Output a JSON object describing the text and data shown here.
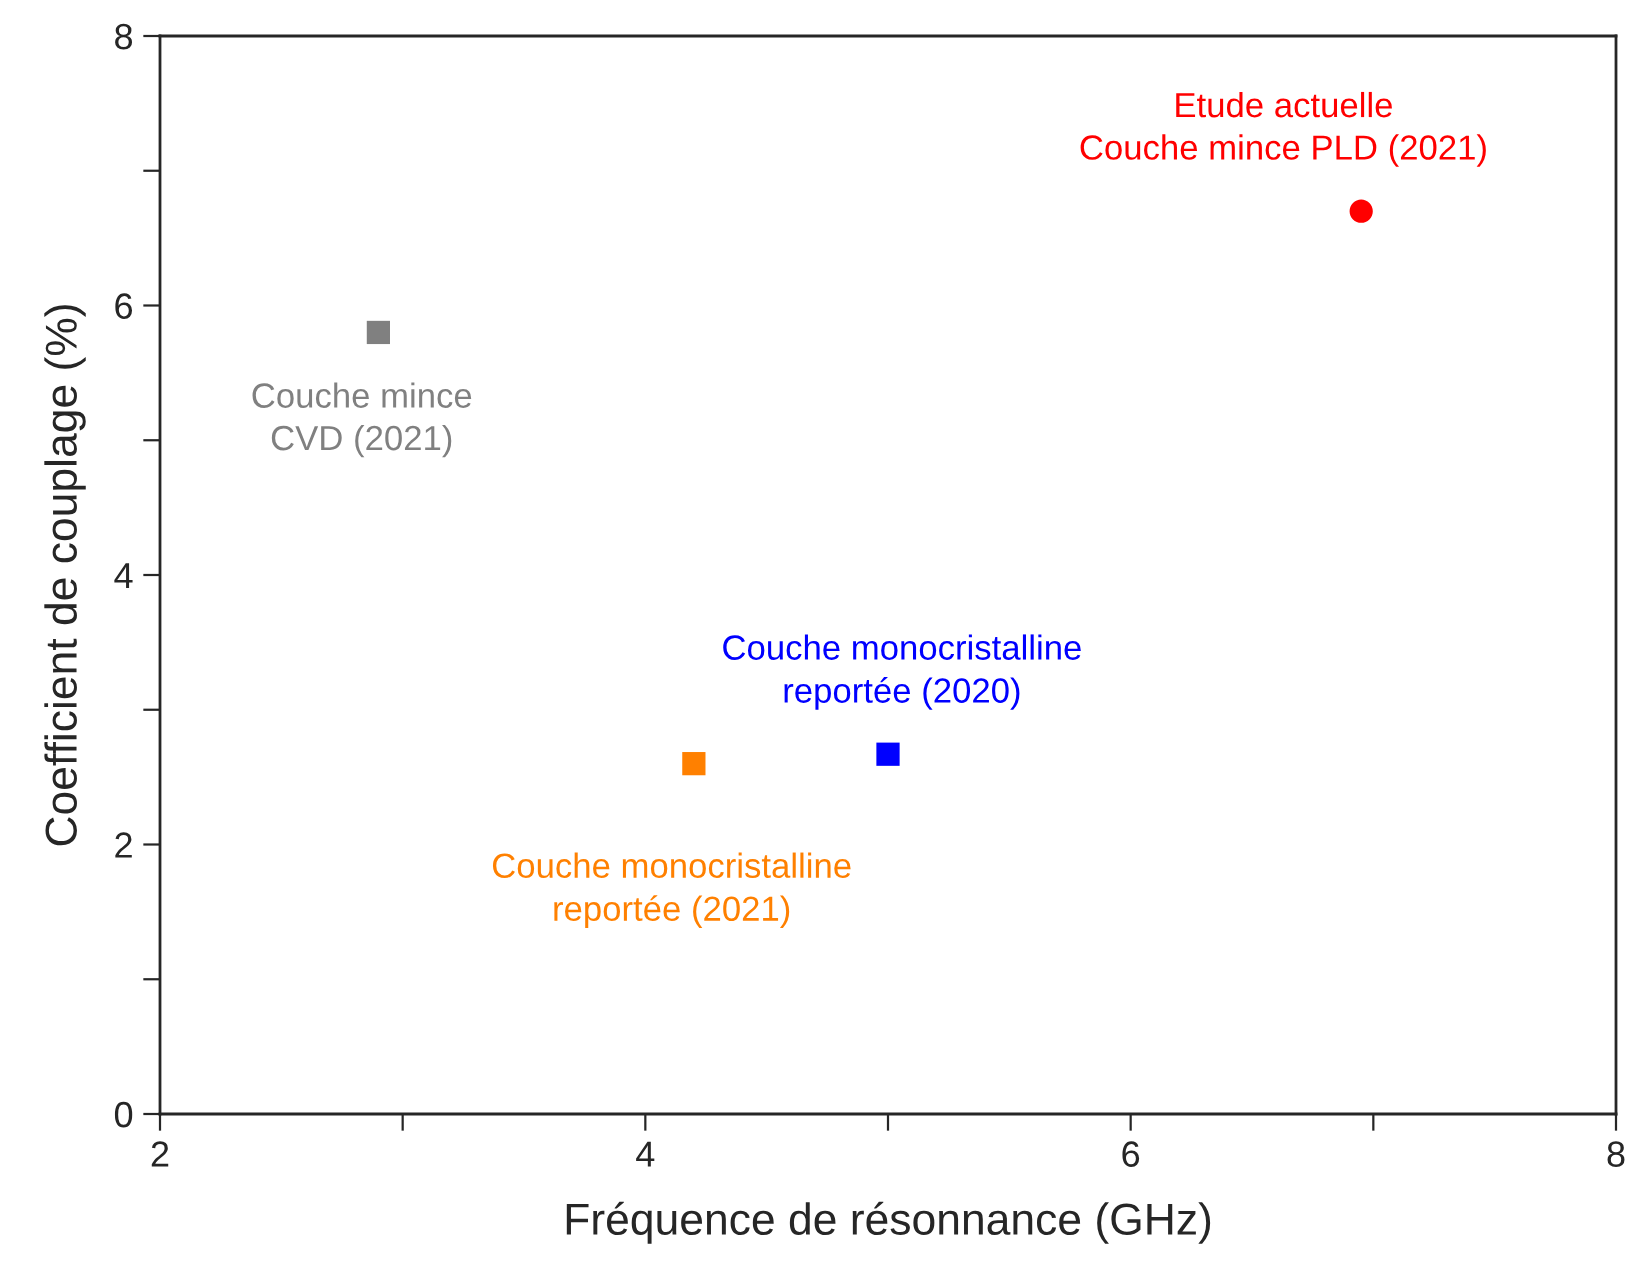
{
  "chart_data": {
    "type": "scatter",
    "xlabel": "Fréquence de résonnance (GHz)",
    "ylabel": "Coefficient de couplage (%)",
    "xlim": [
      2,
      8
    ],
    "ylim": [
      0,
      8
    ],
    "xticks": [
      2,
      {
        "value": 3,
        "label": null
      },
      4,
      {
        "value": 5,
        "label": null
      },
      6,
      {
        "value": 7,
        "label": null
      },
      8
    ],
    "yticks": [
      0,
      {
        "value": 1,
        "label": null
      },
      2,
      {
        "value": 3,
        "label": null
      },
      4,
      {
        "value": 5,
        "label": null
      },
      6,
      {
        "value": 7,
        "label": null
      },
      8
    ],
    "grid": false,
    "legend": false,
    "series": [
      {
        "name": "Couche mince\nCVD (2021)",
        "color": "#808080",
        "marker": "square",
        "x": [
          2.9
        ],
        "values": [
          5.8
        ]
      },
      {
        "name": "Couche monocristalline\nreportée (2021)",
        "color": "#ff8000",
        "marker": "square",
        "x": [
          4.2
        ],
        "values": [
          2.6
        ]
      },
      {
        "name": "Couche monocristalline\nreportée (2020)",
        "color": "#0000ff",
        "marker": "square",
        "x": [
          5.0
        ],
        "values": [
          2.67
        ]
      },
      {
        "name": "Etude actuelle\nCouche mince PLD (2021)",
        "color": "#ff0000",
        "marker": "circle",
        "x": [
          6.95
        ],
        "values": [
          6.7
        ]
      }
    ]
  }
}
